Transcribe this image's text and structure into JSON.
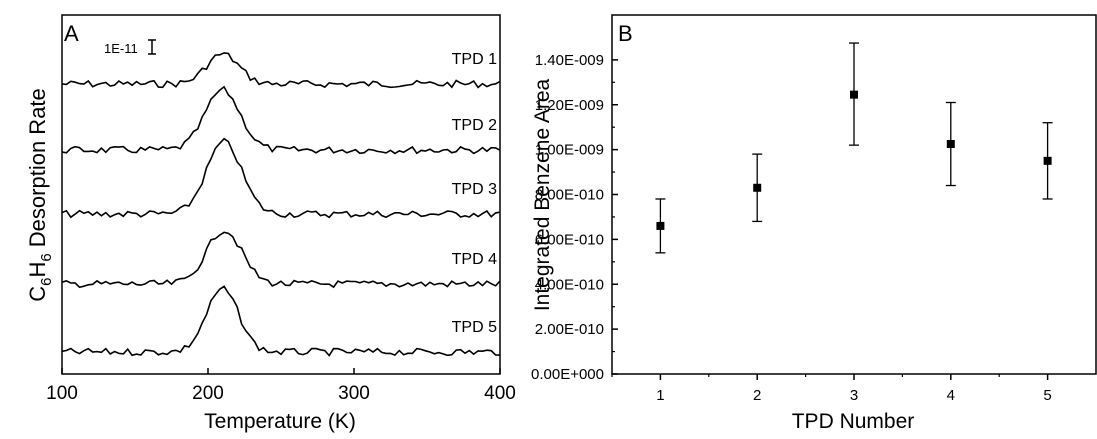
{
  "chart_data": [
    {
      "type": "line",
      "panel_label": "A",
      "xlabel": "Temperature (K)",
      "ylabel": "C6H6 Desorption Rate",
      "ylabel_parts": [
        "C",
        "6",
        "H",
        "6",
        " Desorption Rate"
      ],
      "xlim": [
        100,
        400
      ],
      "xticks": [
        100,
        200,
        300,
        400
      ],
      "scale_bar_label": "1E-11",
      "grid": false,
      "series": [
        {
          "name": "TPD 1",
          "peak_center": 210,
          "peak_width": 11,
          "peak_height": 1.0
        },
        {
          "name": "TPD 2",
          "peak_center": 210,
          "peak_width": 12,
          "peak_height": 2.0
        },
        {
          "name": "TPD 3",
          "peak_center": 211,
          "peak_width": 12,
          "peak_height": 2.4
        },
        {
          "name": "TPD 4",
          "peak_center": 211,
          "peak_width": 12,
          "peak_height": 1.8
        },
        {
          "name": "TPD 5",
          "peak_center": 210,
          "peak_width": 11,
          "peak_height": 2.1
        }
      ]
    },
    {
      "type": "scatter",
      "panel_label": "B",
      "xlabel": "TPD Number",
      "ylabel": "Integrated Benzene Area",
      "xlim": [
        0.5,
        5.5
      ],
      "ylim": [
        0,
        1.6e-09
      ],
      "xticks": [
        "1",
        "2",
        "3",
        "4",
        "5"
      ],
      "ytick_labels": [
        "0.00E+000",
        "2.00E-010",
        "4.00E-010",
        "6.00E-010",
        "8.00E-010",
        "1.00E-009",
        "1.20E-009",
        "1.40E-009"
      ],
      "grid": false,
      "points": [
        {
          "x": 1,
          "y": 6.6e-10,
          "err_low": 5.4e-10,
          "err_high": 7.8e-10
        },
        {
          "x": 2,
          "y": 8.3e-10,
          "err_low": 6.8e-10,
          "err_high": 9.8e-10
        },
        {
          "x": 3,
          "y": 1.245e-09,
          "err_low": 1.02e-09,
          "err_high": 1.475e-09
        },
        {
          "x": 4,
          "y": 1.025e-09,
          "err_low": 8.4e-10,
          "err_high": 1.21e-09
        },
        {
          "x": 5,
          "y": 9.5e-10,
          "err_low": 7.8e-10,
          "err_high": 1.12e-09
        }
      ]
    }
  ]
}
